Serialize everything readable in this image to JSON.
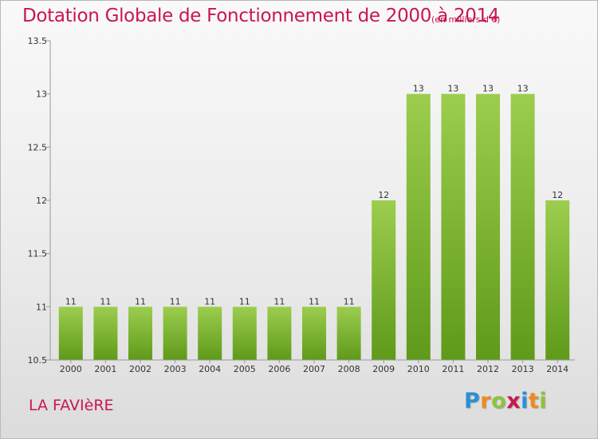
{
  "title": "Dotation Globale de Fonctionnement de 2000 à 2014",
  "subtitle": "(en milliers d'€)",
  "commune": "LA FAVIèRE",
  "logo": {
    "letters": [
      "P",
      "r",
      "o",
      "x",
      "i",
      "t",
      "i"
    ],
    "colors": [
      "#2a8fd6",
      "#f08a1c",
      "#8cc43c",
      "#c8174f",
      "#2a8fd6",
      "#f08a1c",
      "#8cc43c"
    ]
  },
  "colors": {
    "bar_top": "#9ccd4e",
    "bar_bottom": "#5f9a1a",
    "title": "#c8174f"
  },
  "chart_data": {
    "type": "bar",
    "categories": [
      "2000",
      "2001",
      "2002",
      "2003",
      "2004",
      "2005",
      "2006",
      "2007",
      "2008",
      "2009",
      "2010",
      "2011",
      "2012",
      "2013",
      "2014"
    ],
    "values": [
      11,
      11,
      11,
      11,
      11,
      11,
      11,
      11,
      11,
      12,
      13,
      13,
      13,
      13,
      12
    ],
    "data_labels": [
      "11",
      "11",
      "11",
      "11",
      "11",
      "11",
      "11",
      "11",
      "11",
      "12",
      "13",
      "13",
      "13",
      "13",
      "12"
    ],
    "ylim": [
      10.5,
      13.5
    ],
    "yticks": [
      10.5,
      11,
      11.5,
      12,
      12.5,
      13,
      13.5
    ],
    "ytick_labels": [
      "10.5",
      "11",
      "11.5",
      "12",
      "12.5",
      "13",
      "13.5"
    ],
    "grid": false,
    "xlabel": "",
    "ylabel": ""
  }
}
